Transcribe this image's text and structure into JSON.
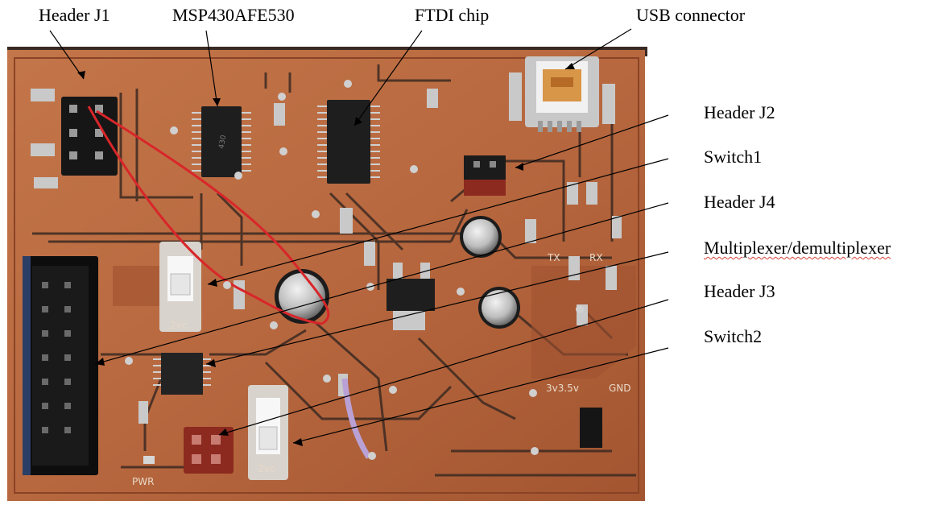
{
  "annotations": {
    "header_j1": "Header J1",
    "msp430": "MSP430AFE530",
    "ftdi": "FTDI chip",
    "usb": "USB connector",
    "header_j2": "Header J2",
    "switch1": "Switch1",
    "header_j4": "Header J4",
    "mux": "Multiplexer/demultiplexer",
    "header_j3": "Header J3",
    "switch2": "Switch2"
  },
  "board_silkscreen": {
    "tx": "TX",
    "rx": "RX",
    "voltage": "3v3.5v",
    "gnd": "GND",
    "pwr": "PWR",
    "switch_mark_1": "2vc",
    "switch_mark_2": "2vc"
  },
  "colors": {
    "board": "#b8683f",
    "copper": "#a55832",
    "trace": "#3d2a22",
    "solder": "#cfcfcf",
    "wire": "#d8262a",
    "wire2": "#b9a1d6",
    "misspell_underline": "#d8413b"
  }
}
